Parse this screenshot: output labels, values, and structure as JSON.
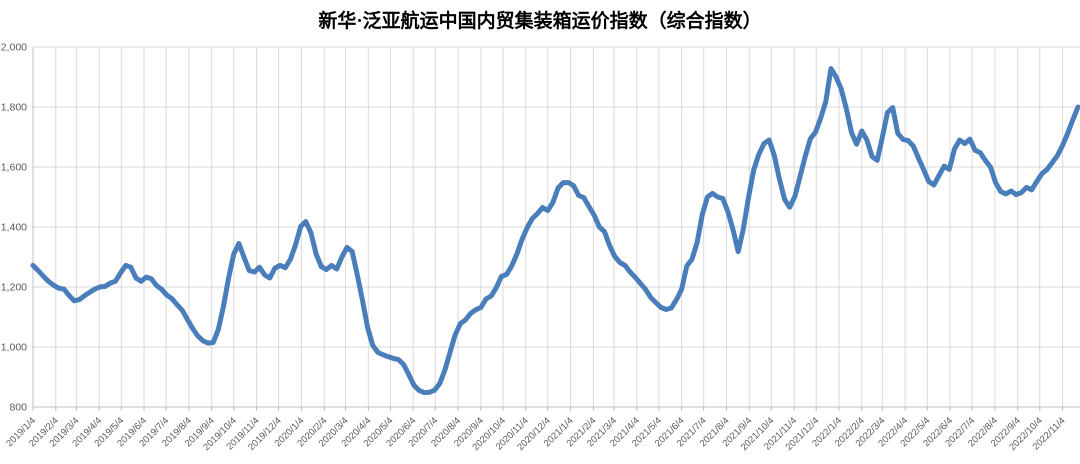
{
  "chart_data": {
    "type": "line",
    "title": "新华·泛亚航运中国内贸集装箱运价指数（综合指数）",
    "series_name": "综合指数",
    "x_frequency": "weekly",
    "x_start": "2019/1/4",
    "x_end": "2022/11/25",
    "x_tick_labels": [
      "2019/1/4",
      "2019/2/4",
      "2019/3/4",
      "2019/4/4",
      "2019/5/4",
      "2019/6/4",
      "2019/7/4",
      "2019/8/4",
      "2019/9/4",
      "2019/10/4",
      "2019/11/4",
      "2019/12/4",
      "2020/1/4",
      "2020/2/4",
      "2020/3/4",
      "2020/4/4",
      "2020/5/4",
      "2020/6/4",
      "2020/7/4",
      "2020/8/4",
      "2020/9/4",
      "2020/10/4",
      "2020/11/4",
      "2020/12/4",
      "2021/1/4",
      "2021/2/4",
      "2021/3/4",
      "2021/4/4",
      "2021/5/4",
      "2021/6/4",
      "2021/7/4",
      "2021/8/4",
      "2021/9/4",
      "2021/10/4",
      "2021/11/4",
      "2021/12/4",
      "2022/1/4",
      "2022/2/4",
      "2022/3/4",
      "2022/4/4",
      "2022/5/4",
      "2022/6/4",
      "2022/7/4",
      "2022/8/4",
      "2022/9/4",
      "2022/10/4",
      "2022/11/4"
    ],
    "y_tick_labels": [
      "800",
      "1,000",
      "1,200",
      "1,400",
      "1,600",
      "1,800",
      "2,000"
    ],
    "ylim": [
      800,
      2000
    ],
    "y_step": 200,
    "grid": true,
    "legend_position": "none",
    "line_color": "#4A7EBB",
    "grid_color": "#D9D9D9",
    "axis_color": "#BFBFBF",
    "label_color": "#595959",
    "background": "#FFFFFF",
    "values": [
      1272,
      1255,
      1236,
      1219,
      1206,
      1196,
      1193,
      1172,
      1154,
      1158,
      1171,
      1182,
      1193,
      1200,
      1202,
      1213,
      1219,
      1247,
      1272,
      1266,
      1230,
      1219,
      1233,
      1227,
      1205,
      1192,
      1173,
      1161,
      1141,
      1122,
      1092,
      1062,
      1037,
      1021,
      1013,
      1015,
      1058,
      1136,
      1230,
      1310,
      1345,
      1298,
      1255,
      1250,
      1266,
      1240,
      1230,
      1263,
      1272,
      1264,
      1292,
      1340,
      1402,
      1418,
      1380,
      1310,
      1268,
      1258,
      1272,
      1260,
      1300,
      1332,
      1318,
      1240,
      1155,
      1065,
      1005,
      982,
      974,
      968,
      962,
      958,
      942,
      908,
      873,
      855,
      848,
      849,
      856,
      878,
      922,
      982,
      1040,
      1078,
      1090,
      1112,
      1124,
      1132,
      1160,
      1170,
      1198,
      1235,
      1242,
      1270,
      1310,
      1358,
      1398,
      1428,
      1445,
      1465,
      1455,
      1482,
      1530,
      1548,
      1548,
      1538,
      1505,
      1498,
      1468,
      1440,
      1400,
      1385,
      1338,
      1302,
      1282,
      1272,
      1250,
      1232,
      1212,
      1192,
      1165,
      1148,
      1132,
      1125,
      1130,
      1158,
      1192,
      1270,
      1292,
      1348,
      1440,
      1500,
      1512,
      1500,
      1495,
      1450,
      1390,
      1318,
      1395,
      1498,
      1590,
      1642,
      1678,
      1690,
      1638,
      1560,
      1492,
      1466,
      1502,
      1568,
      1635,
      1694,
      1716,
      1762,
      1818,
      1928,
      1900,
      1860,
      1795,
      1715,
      1676,
      1720,
      1690,
      1635,
      1622,
      1700,
      1782,
      1798,
      1712,
      1692,
      1688,
      1670,
      1630,
      1592,
      1552,
      1540,
      1572,
      1603,
      1592,
      1660,
      1690,
      1678,
      1693,
      1656,
      1648,
      1622,
      1600,
      1548,
      1518,
      1510,
      1520,
      1508,
      1515,
      1532,
      1524,
      1552,
      1578,
      1592,
      1615,
      1638,
      1672,
      1712,
      1758,
      1800
    ]
  }
}
